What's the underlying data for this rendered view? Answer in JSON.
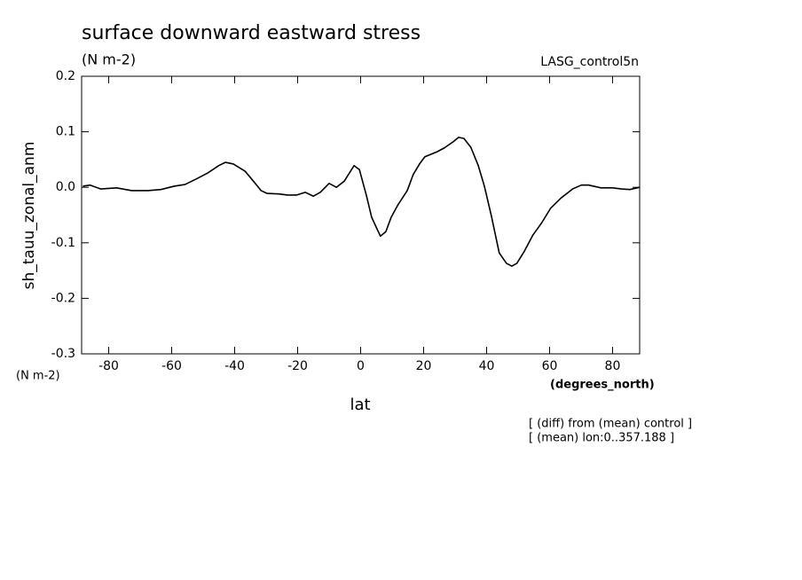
{
  "chart_data": {
    "type": "line",
    "title": "surface downward eastward stress",
    "subtitle": "(N m-2)",
    "dataset_label": "LASG_control5n",
    "ylabel": "sh_tauu_zonal_anm",
    "y_units": "(N m-2)",
    "xlabel": "lat",
    "x_units": "(degrees_north)",
    "annotations": [
      "[ (diff) from (mean) control ]",
      "[ (mean) lon:0..357.188 ]"
    ],
    "color": "#000000",
    "x": [
      -88.2,
      -85.9,
      -82.5,
      -77.5,
      -72.7,
      -67.6,
      -63.4,
      -59.2,
      -55.8,
      -52.2,
      -48.5,
      -45.1,
      -42.9,
      -40.4,
      -36.7,
      -33.9,
      -31.6,
      -29.7,
      -26,
      -23.2,
      -20.4,
      -17.6,
      -15,
      -12.8,
      -10,
      -7.7,
      -5.2,
      -2.1,
      -0.4,
      1.8,
      3.5,
      5.2,
      6.3,
      8,
      9.7,
      11.7,
      14.8,
      16.7,
      18.7,
      20.4,
      24.3,
      26.6,
      29.4,
      31.1,
      32.8,
      35,
      37.3,
      39.3,
      41.5,
      44,
      46.3,
      48,
      49.6,
      51.9,
      54.7,
      57.5,
      60.3,
      63.7,
      67.3,
      70.1,
      72.4,
      76.3,
      80,
      82.8,
      85.5,
      88.6
    ],
    "values": [
      0.002,
      0.004,
      -0.003,
      -0.001,
      -0.006,
      -0.006,
      -0.004,
      0.002,
      0.005,
      0.015,
      0.026,
      0.039,
      0.045,
      0.042,
      0.029,
      0.01,
      -0.006,
      -0.011,
      -0.012,
      -0.014,
      -0.014,
      -0.009,
      -0.016,
      -0.009,
      0.007,
      0.0,
      0.011,
      0.039,
      0.032,
      -0.014,
      -0.054,
      -0.075,
      -0.088,
      -0.08,
      -0.054,
      -0.033,
      -0.006,
      0.023,
      0.042,
      0.055,
      0.064,
      0.071,
      0.082,
      0.09,
      0.088,
      0.072,
      0.04,
      0.002,
      -0.051,
      -0.118,
      -0.137,
      -0.142,
      -0.137,
      -0.116,
      -0.086,
      -0.064,
      -0.038,
      -0.019,
      -0.003,
      0.004,
      0.004,
      -0.001,
      -0.001,
      -0.003,
      -0.004,
      0.0
    ],
    "xlim": [
      -88.6,
      88.6
    ],
    "ylim": [
      -0.3,
      0.2
    ],
    "xticks": [
      -80,
      -60,
      -40,
      -20,
      0,
      20,
      40,
      60,
      80
    ],
    "yticks": [
      -0.3,
      -0.2,
      -0.1,
      {
        "value": 0,
        "label": "0.0"
      },
      0.1,
      0.2
    ]
  }
}
